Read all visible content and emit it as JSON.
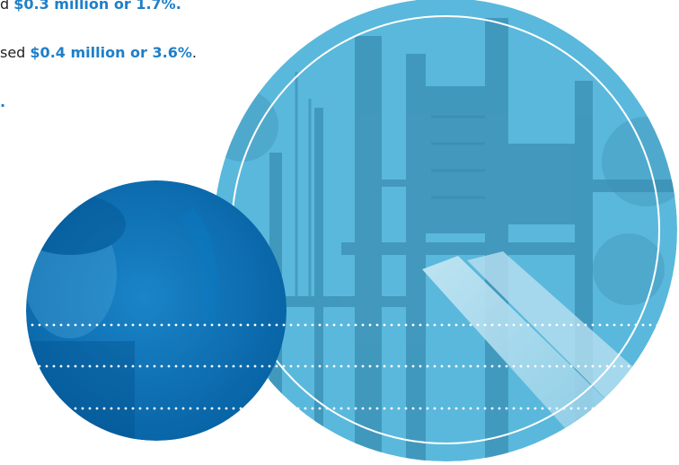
{
  "text_lines": [
    {
      "prefix": "d ",
      "highlight": "$0.3 million or 1.7%.",
      "suffix": ""
    },
    {
      "prefix": "sed ",
      "highlight": "$0.4 million or 3.6%",
      "suffix": "."
    },
    {
      "prefix": "",
      "highlight": ".",
      "suffix": ""
    }
  ],
  "colors": {
    "highlight": "#1f7fc9",
    "small_circle": "#0a6fb5",
    "large_circle": "#5ab8dc",
    "ring": "#ffffff",
    "dots": "#ffffff"
  },
  "images": {
    "large_circle": "playground-photo",
    "small_circle": "child-portrait-photo"
  }
}
